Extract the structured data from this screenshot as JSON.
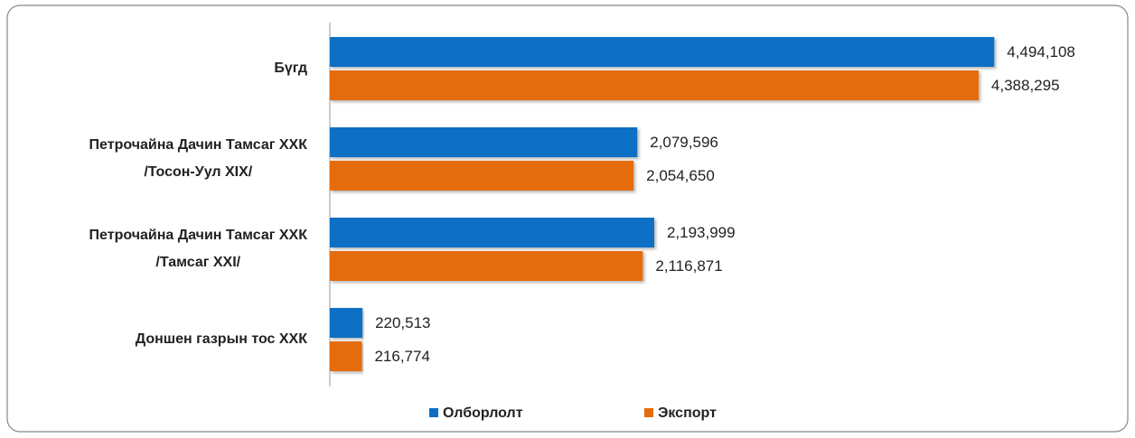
{
  "chart_data": {
    "type": "barh",
    "categories": [
      "Бүгд",
      "Петрочайна Дачин Тамсаг ХХК\n/Тосон-Уул XIX/",
      "Петрочайна Дачин Тамсаг ХХК\n/Тамсаг XXI/",
      "Доншен газрын тос  ХХК"
    ],
    "series": [
      {
        "name": "Олборлолт",
        "color": "#0b6fc4",
        "values": [
          4494108,
          2079596,
          2193999,
          220513
        ],
        "value_labels": [
          "4,494,108",
          "2,079,596",
          "2,193,999",
          "220,513"
        ]
      },
      {
        "name": "Экспорт",
        "color": "#e56c0c",
        "values": [
          4388295,
          2054650,
          2116871,
          216774
        ],
        "value_labels": [
          "4,388,295",
          "2,054,650",
          "2,116,871",
          "216,774"
        ]
      }
    ],
    "xlim": [
      0,
      5000000
    ],
    "legend": "bottom"
  }
}
